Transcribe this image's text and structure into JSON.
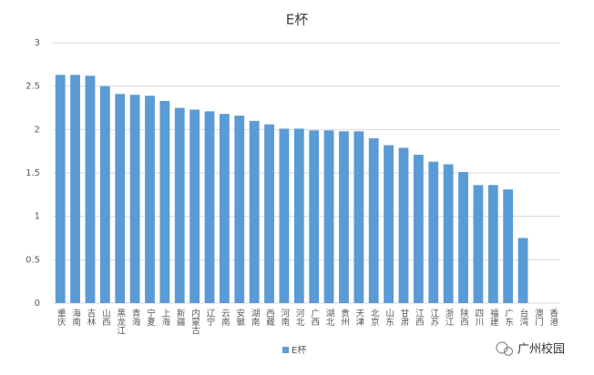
{
  "chart_data": {
    "type": "bar",
    "title": "E杯",
    "categories": [
      "重庆",
      "海南",
      "吉林",
      "山西",
      "黑龙江",
      "青海",
      "宁夏",
      "上海",
      "新疆",
      "内蒙古",
      "辽宁",
      "云南",
      "安徽",
      "湖南",
      "西藏",
      "河南",
      "河北",
      "广西",
      "湖北",
      "贵州",
      "天津",
      "北京",
      "山东",
      "甘肃",
      "江西",
      "江苏",
      "浙江",
      "陕西",
      "四川",
      "福建",
      "广东",
      "台湾",
      "澳门",
      "香港"
    ],
    "series": [
      {
        "name": "E杯",
        "color": "#5b9bd5",
        "values": [
          2.63,
          2.63,
          2.62,
          2.5,
          2.41,
          2.4,
          2.39,
          2.33,
          2.25,
          2.23,
          2.21,
          2.18,
          2.16,
          2.1,
          2.06,
          2.01,
          2.01,
          1.99,
          1.99,
          1.98,
          1.98,
          1.9,
          1.82,
          1.79,
          1.71,
          1.63,
          1.6,
          1.51,
          1.36,
          1.36,
          1.31,
          0.75,
          0,
          0
        ]
      }
    ],
    "ylim": [
      0,
      3
    ],
    "yticks": [
      0,
      0.5,
      1,
      1.5,
      2,
      2.5,
      3
    ],
    "grid": true,
    "legend": "bottom",
    "watermark": "广州校园"
  }
}
